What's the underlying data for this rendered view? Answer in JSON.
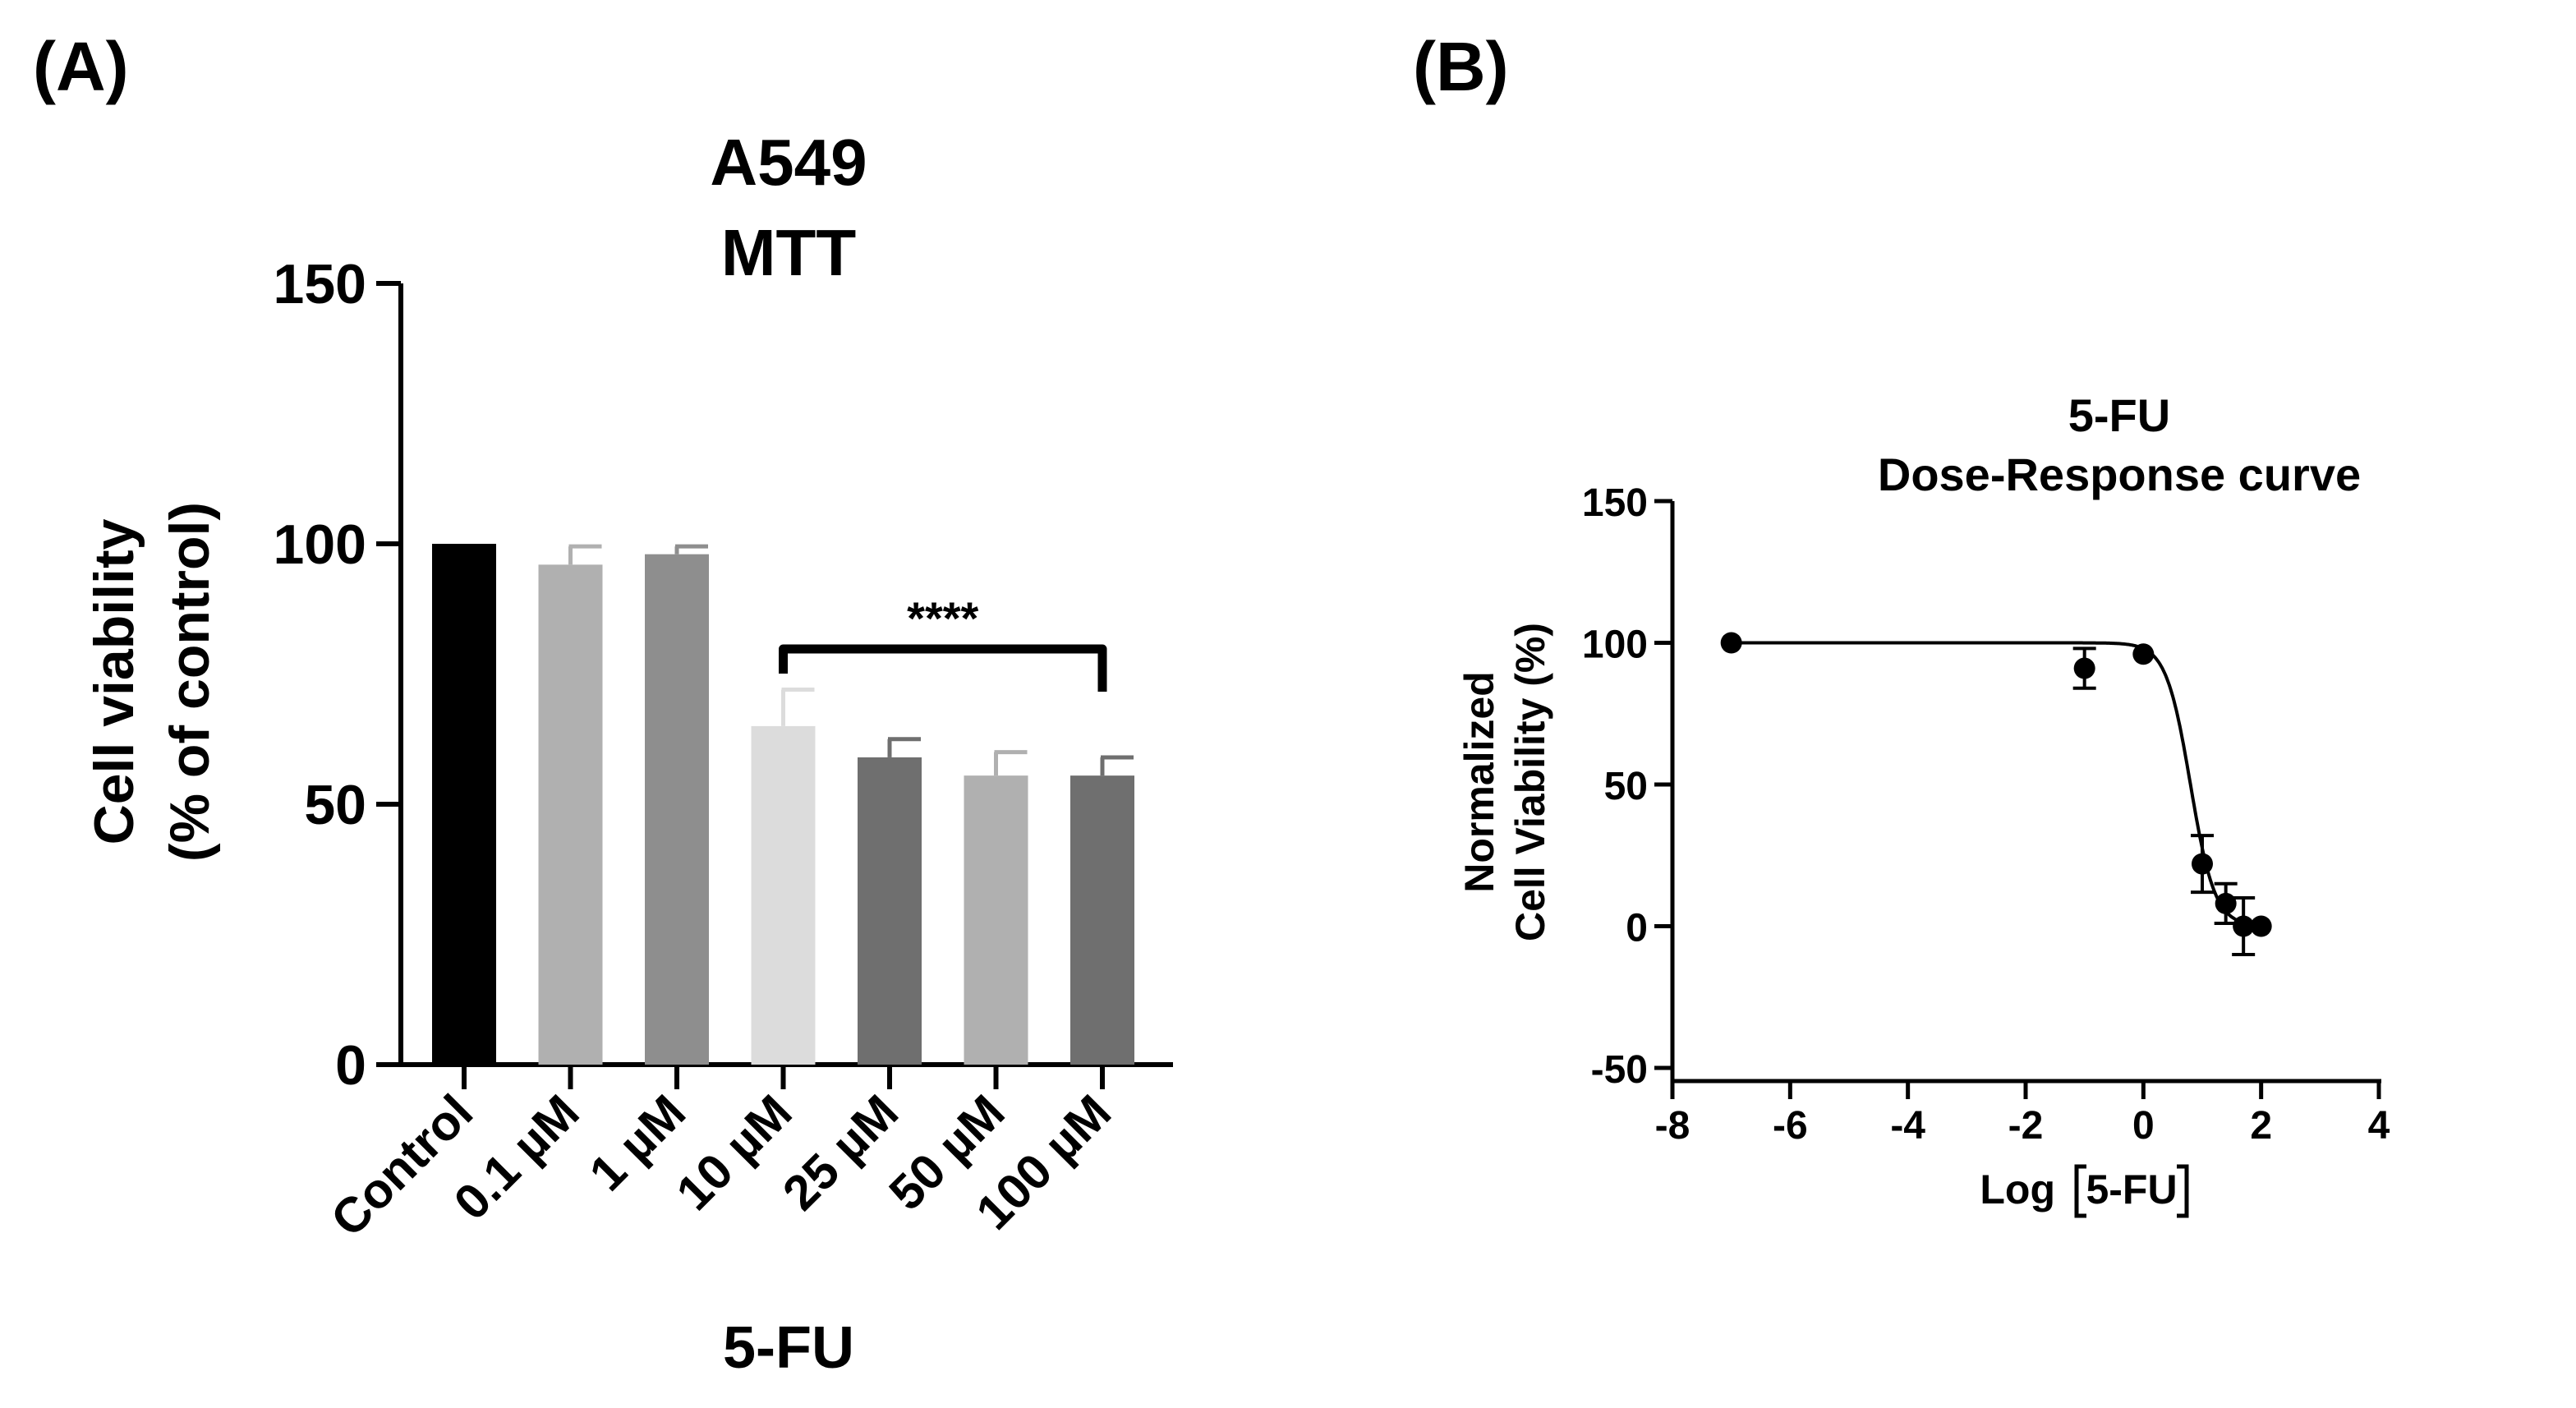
{
  "panel_a_label": "(A)",
  "panel_b_label": "(B)",
  "chart_data": [
    {
      "type": "bar",
      "title": "A549",
      "subtitle": "MTT",
      "xlabel": "5-FU",
      "ylabel": "Cell viability",
      "ylabel_line2": "(% of control)",
      "categories": [
        "Control",
        "0.1 µM",
        "1 µM",
        "10 µM",
        "25 µM",
        "50 µM",
        "100 µM"
      ],
      "values": [
        100,
        96,
        98,
        65,
        59,
        55.5,
        55.5
      ],
      "errors": [
        0,
        3.5,
        1.5,
        7,
        3.5,
        4.5,
        3.5
      ],
      "bar_colors": [
        "#000000",
        "#b0b0b0",
        "#8e8e8e",
        "#dcdcdc",
        "#6f6f6f",
        "#b0b0b0",
        "#6f6f6f"
      ],
      "ylim": [
        0,
        150
      ],
      "yticks": [
        0,
        50,
        100,
        150
      ],
      "significance": {
        "from": "10 µM",
        "to": "100 µM",
        "label": "****"
      }
    },
    {
      "type": "scatter",
      "title": "5-FU",
      "subtitle": "Dose-Response curve",
      "xlabel_prefix": "Log",
      "xlabel_inner": "5-FU",
      "ylabel": "Normalized",
      "ylabel_line2": "Cell Viability (%)",
      "x": [
        -7,
        -1,
        0,
        1,
        1.4,
        1.7,
        2
      ],
      "y": [
        100,
        91,
        96,
        22,
        8,
        0,
        0
      ],
      "errors": [
        0,
        7,
        0,
        10,
        7,
        10,
        0
      ],
      "xlim": [
        -8,
        4
      ],
      "ylim": [
        -50,
        150
      ],
      "xticks": [
        -8,
        -6,
        -4,
        -2,
        0,
        2,
        4
      ],
      "yticks": [
        -50,
        0,
        50,
        100,
        150
      ],
      "fit": {
        "model": "four-parameter logistic",
        "top": 100,
        "bottom": 0,
        "log_ic50": 0.8,
        "hill_slope": 2.1
      }
    }
  ]
}
